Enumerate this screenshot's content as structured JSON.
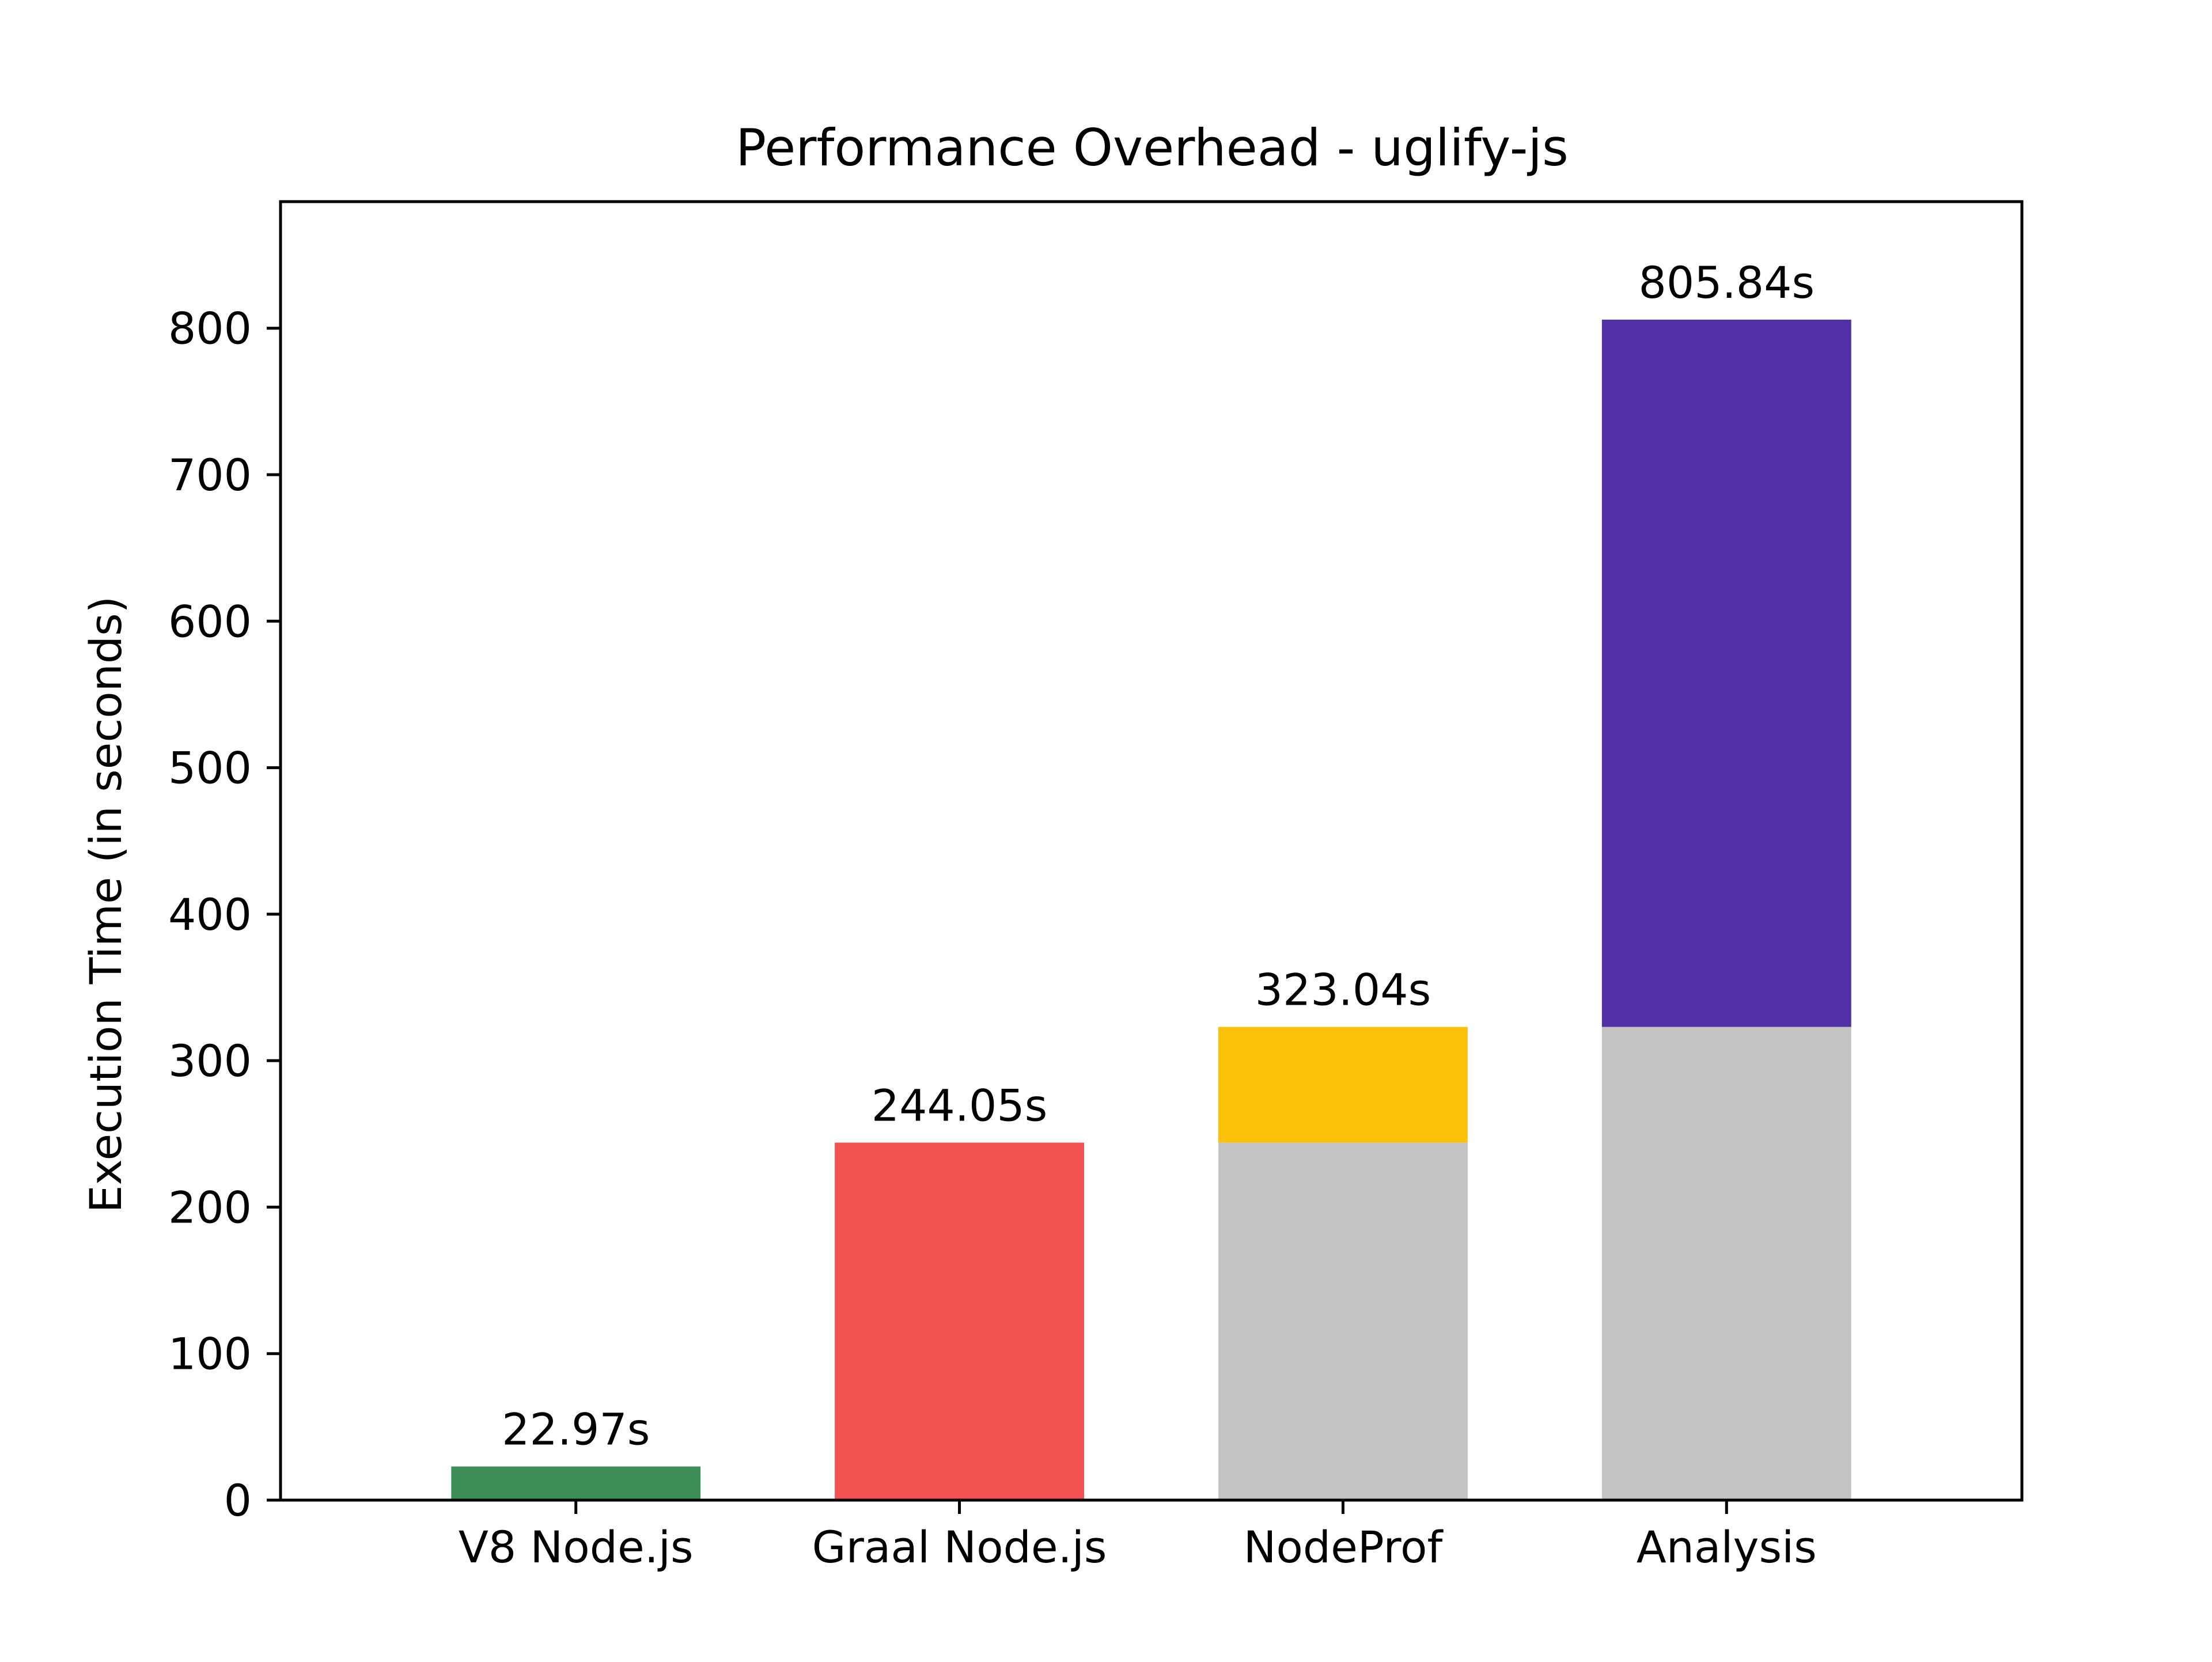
{
  "chart_data": {
    "type": "bar",
    "stacked": true,
    "title": "Performance Overhead - uglify-js",
    "xlabel": "",
    "ylabel": "Execution Time (in seconds)",
    "ylim": [
      0,
      886.4
    ],
    "yticks": [
      0,
      100,
      200,
      300,
      400,
      500,
      600,
      700,
      800
    ],
    "grid": false,
    "categories": [
      "V8 Node.js",
      "Graal Node.js",
      "NodeProf",
      "Analysis"
    ],
    "bars": [
      {
        "category": "V8 Node.js",
        "total_label": "22.97s",
        "segments": [
          {
            "value": 22.97,
            "color": "#3e8f57"
          }
        ]
      },
      {
        "category": "Graal Node.js",
        "total_label": "244.05s",
        "segments": [
          {
            "value": 244.05,
            "color": "#f25252"
          }
        ]
      },
      {
        "category": "NodeProf",
        "total_label": "323.04s",
        "segments": [
          {
            "value": 244.05,
            "color": "#c3c3c3"
          },
          {
            "value": 78.99,
            "color": "#fcc10b"
          }
        ]
      },
      {
        "category": "Analysis",
        "total_label": "805.84s",
        "segments": [
          {
            "value": 323.04,
            "color": "#c3c3c3"
          },
          {
            "value": 482.8,
            "color": "#5130a6"
          }
        ]
      }
    ]
  }
}
